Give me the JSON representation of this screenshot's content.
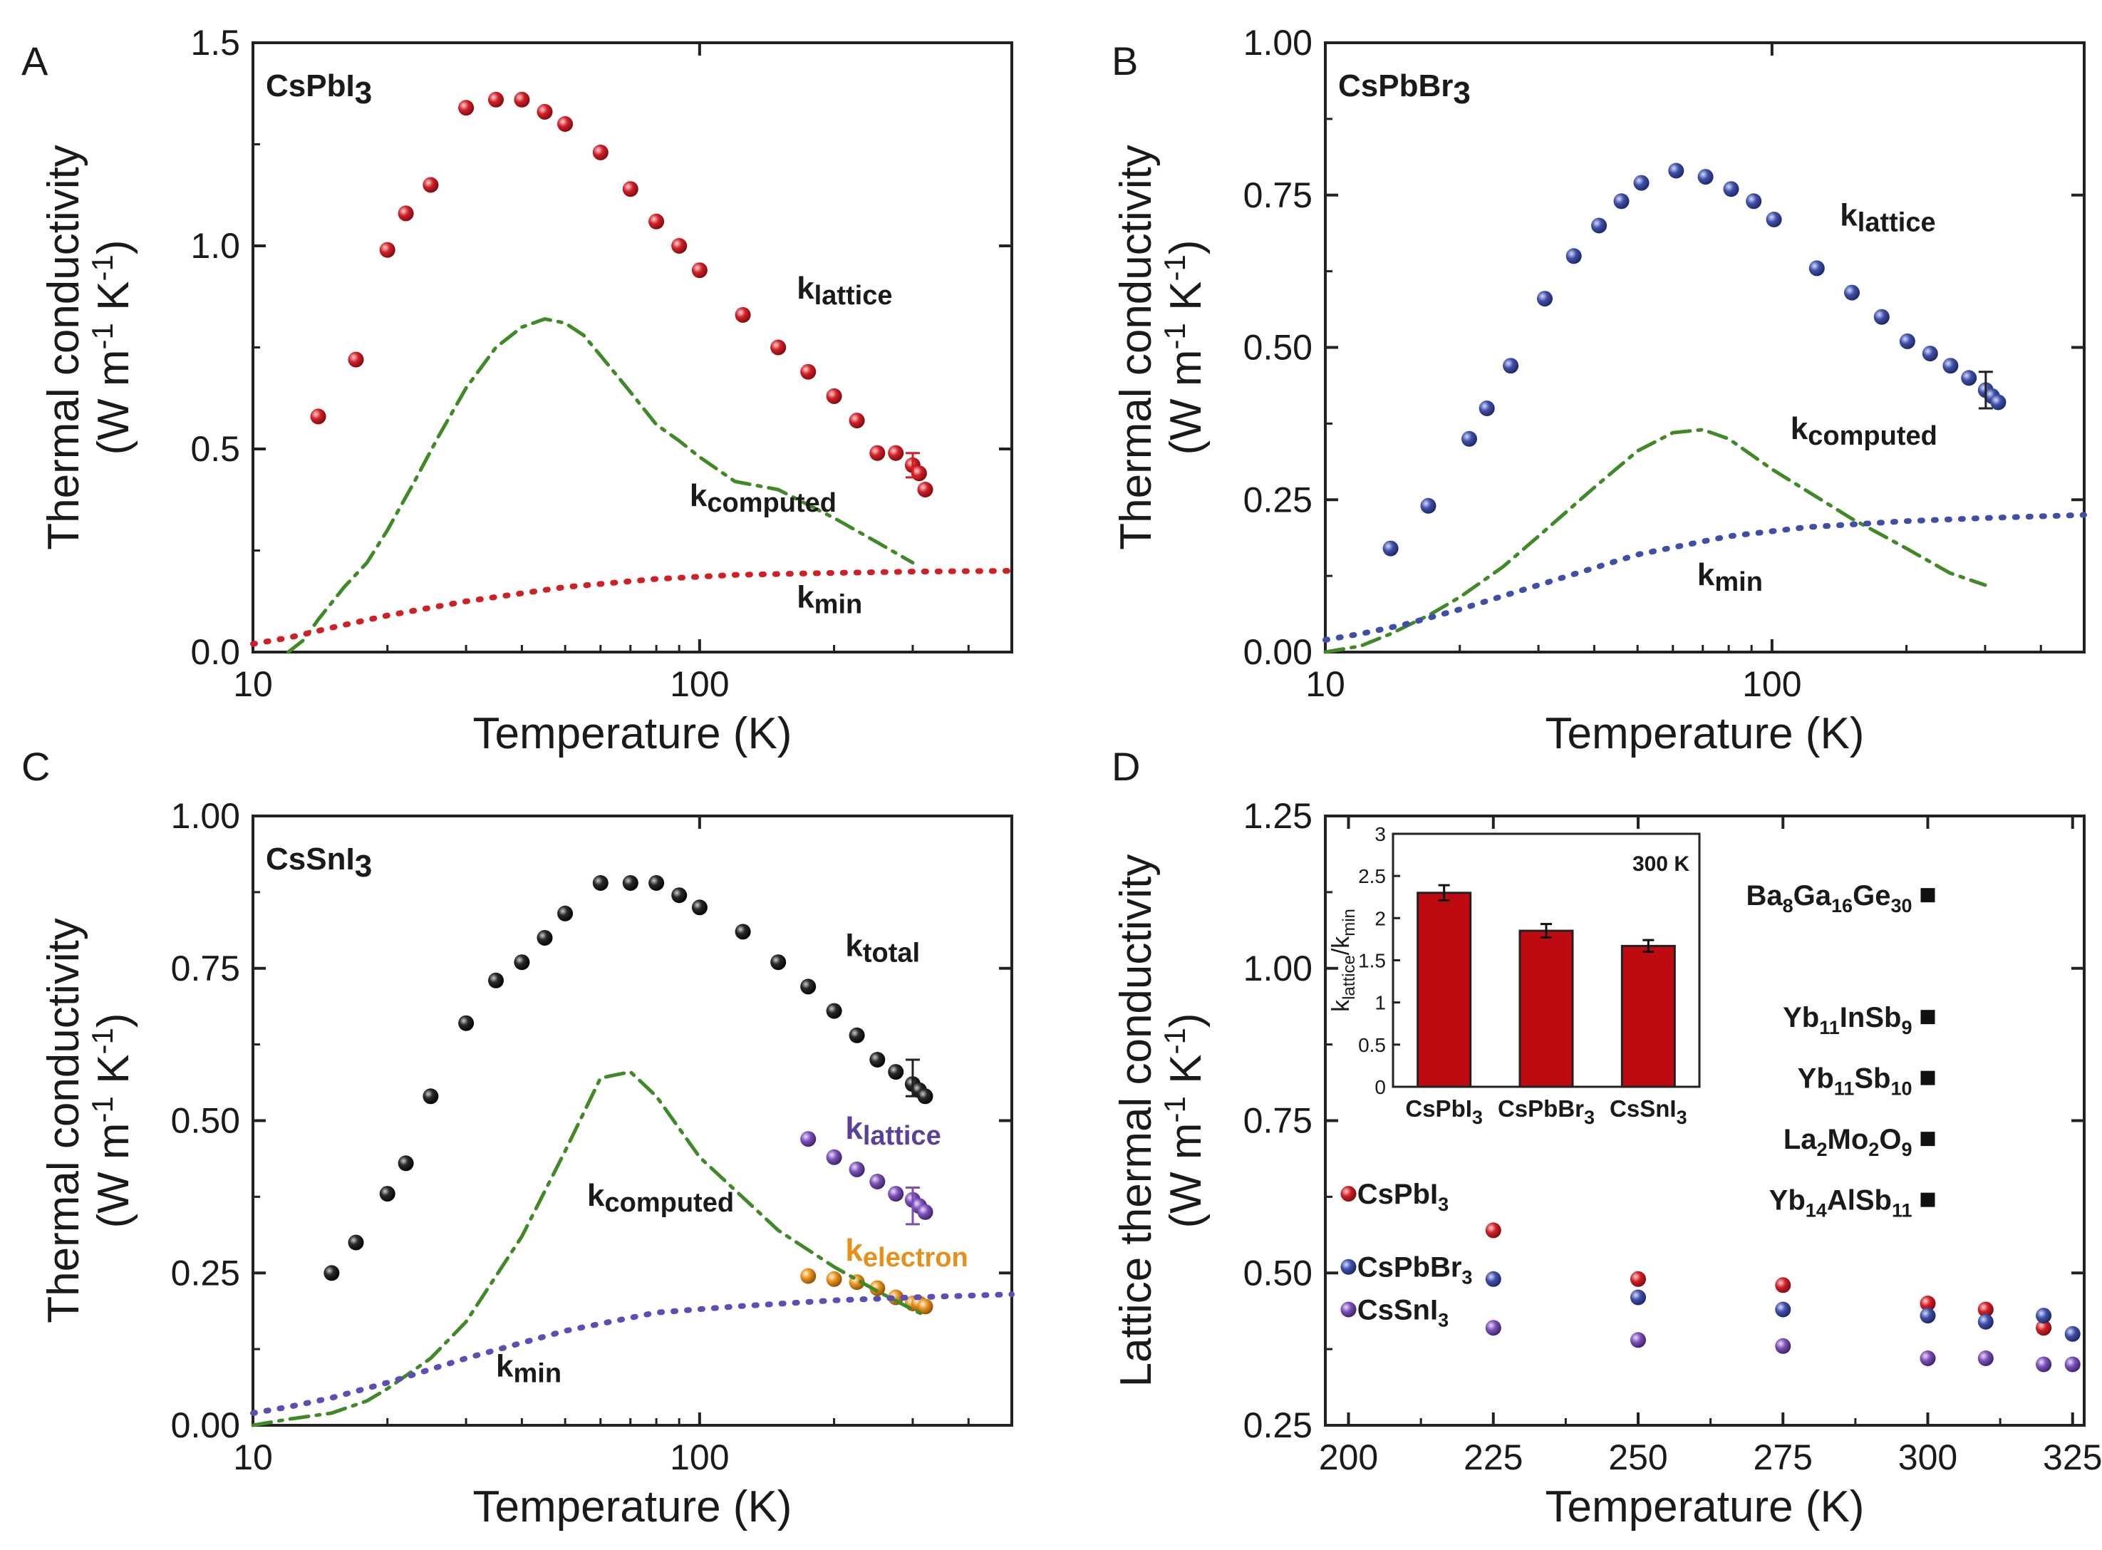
{
  "chart_data": [
    {
      "panel": "A",
      "type": "scatter",
      "title": "CsPbI3",
      "xlabel": "Temperature (K)",
      "ylabel_line1": "Thermal conductivity",
      "ylabel_line2": "(W m-1 K-1)",
      "xscale": "log",
      "xlim": [
        10,
        500
      ],
      "ylim": [
        0,
        1.5
      ],
      "xticks": [
        {
          "value": 10,
          "label": "10"
        },
        {
          "value": 100,
          "label": "100"
        }
      ],
      "yticks": [
        {
          "value": 0,
          "label": "0.0"
        },
        {
          "value": 0.5,
          "label": "0.5"
        },
        {
          "value": 1.0,
          "label": "1.0"
        },
        {
          "value": 1.5,
          "label": "1.5"
        }
      ],
      "series": [
        {
          "name": "klattice",
          "label_main": "k",
          "label_sub": "lattice",
          "color": "#d11f26",
          "marker": "sphere",
          "x": [
            14,
            17,
            20,
            22,
            25,
            30,
            35,
            40,
            45,
            50,
            60,
            70,
            80,
            90,
            100,
            125,
            150,
            175,
            200,
            225,
            250,
            275,
            300,
            310,
            320
          ],
          "y": [
            0.58,
            0.72,
            0.99,
            1.08,
            1.15,
            1.34,
            1.36,
            1.36,
            1.33,
            1.3,
            1.23,
            1.14,
            1.06,
            1.0,
            0.94,
            0.83,
            0.75,
            0.69,
            0.63,
            0.57,
            0.49,
            0.49,
            0.46,
            0.44,
            0.4
          ],
          "errorbar": {
            "x": 300,
            "y": 0.46,
            "err": 0.03
          },
          "label_at": {
            "x": 165,
            "y": 0.87
          }
        },
        {
          "name": "kcomputed",
          "label_main": "k",
          "label_sub": "computed",
          "color": "#3f8a26",
          "style": "dashdot",
          "x": [
            12,
            13,
            14,
            16,
            18,
            20,
            23,
            26,
            30,
            35,
            40,
            45,
            50,
            55,
            60,
            70,
            80,
            90,
            100,
            120,
            150,
            200,
            250,
            300
          ],
          "y": [
            0.0,
            0.03,
            0.08,
            0.16,
            0.22,
            0.3,
            0.42,
            0.53,
            0.65,
            0.75,
            0.8,
            0.82,
            0.81,
            0.78,
            0.73,
            0.64,
            0.56,
            0.52,
            0.48,
            0.42,
            0.4,
            0.33,
            0.27,
            0.22
          ],
          "label_at": {
            "x": 95,
            "y": 0.36
          }
        },
        {
          "name": "kmin",
          "label_main": "k",
          "label_sub": "min",
          "color": "#d11f26",
          "style": "dotted",
          "x": [
            10,
            12,
            15,
            20,
            30,
            50,
            80,
            120,
            200,
            300,
            500
          ],
          "y": [
            0.02,
            0.035,
            0.06,
            0.09,
            0.125,
            0.16,
            0.18,
            0.19,
            0.195,
            0.198,
            0.2
          ],
          "label_at": {
            "x": 165,
            "y": 0.11
          }
        }
      ]
    },
    {
      "panel": "B",
      "type": "scatter",
      "title": "CsPbBr3",
      "xlabel": "Temperature (K)",
      "ylabel_line1": "Thermal conductivity",
      "ylabel_line2": "(W m-1 K-1)",
      "xscale": "log",
      "xlim": [
        10,
        500
      ],
      "ylim": [
        0,
        1.0
      ],
      "xticks": [
        {
          "value": 10,
          "label": "10"
        },
        {
          "value": 100,
          "label": "100"
        }
      ],
      "yticks": [
        {
          "value": 0,
          "label": "0.00"
        },
        {
          "value": 0.25,
          "label": "0.25"
        },
        {
          "value": 0.5,
          "label": "0.50"
        },
        {
          "value": 0.75,
          "label": "0.75"
        },
        {
          "value": 1.0,
          "label": "1.00"
        }
      ],
      "series": [
        {
          "name": "klattice",
          "label_main": "k",
          "label_sub": "lattice",
          "color": "#3f4fa8",
          "marker": "sphere",
          "x": [
            14,
            17,
            21,
            23,
            26,
            31,
            36,
            41,
            46,
            51,
            61,
            71,
            81,
            91,
            101,
            126,
            151,
            176,
            201,
            226,
            251,
            276,
            301,
            311,
            321
          ],
          "y": [
            0.17,
            0.24,
            0.35,
            0.4,
            0.47,
            0.58,
            0.65,
            0.7,
            0.74,
            0.77,
            0.79,
            0.78,
            0.76,
            0.74,
            0.71,
            0.63,
            0.59,
            0.55,
            0.51,
            0.49,
            0.47,
            0.45,
            0.43,
            0.42,
            0.41
          ],
          "errorbar": {
            "x": 301,
            "y": 0.43,
            "err": 0.03
          },
          "label_at": {
            "x": 142,
            "y": 0.7
          }
        },
        {
          "name": "kcomputed",
          "label_main": "k",
          "label_sub": "computed",
          "color": "#3f8a26",
          "style": "dashdot",
          "x": [
            10,
            12,
            14,
            17,
            20,
            25,
            30,
            40,
            50,
            60,
            70,
            80,
            100,
            150,
            200,
            250,
            300
          ],
          "y": [
            0.0,
            0.01,
            0.03,
            0.06,
            0.09,
            0.14,
            0.19,
            0.27,
            0.33,
            0.36,
            0.365,
            0.35,
            0.3,
            0.22,
            0.17,
            0.13,
            0.11
          ],
          "label_at": {
            "x": 110,
            "y": 0.35
          }
        },
        {
          "name": "kmin",
          "label_main": "k",
          "label_sub": "min",
          "color": "#3f4fa8",
          "style": "dotted",
          "x": [
            10,
            12,
            15,
            20,
            30,
            50,
            80,
            120,
            200,
            300,
            500
          ],
          "y": [
            0.02,
            0.03,
            0.045,
            0.07,
            0.11,
            0.16,
            0.19,
            0.205,
            0.215,
            0.22,
            0.225
          ],
          "label_at": {
            "x": 68,
            "y": 0.11
          }
        }
      ]
    },
    {
      "panel": "C",
      "type": "scatter",
      "title": "CsSnI3",
      "xlabel": "Temperature (K)",
      "ylabel_line1": "Thermal conductivity",
      "ylabel_line2": "(W m-1 K-1)",
      "xscale": "log",
      "xlim": [
        10,
        500
      ],
      "ylim": [
        0,
        1.0
      ],
      "xticks": [
        {
          "value": 10,
          "label": "10"
        },
        {
          "value": 100,
          "label": "100"
        }
      ],
      "yticks": [
        {
          "value": 0,
          "label": "0.00"
        },
        {
          "value": 0.25,
          "label": "0.25"
        },
        {
          "value": 0.5,
          "label": "0.50"
        },
        {
          "value": 0.75,
          "label": "0.75"
        },
        {
          "value": 1.0,
          "label": "1.00"
        }
      ],
      "series": [
        {
          "name": "ktotal",
          "label_main": "k",
          "label_sub": "total",
          "color": "#1a1a1a",
          "marker": "sphere",
          "x": [
            15,
            17,
            20,
            22,
            25,
            30,
            35,
            40,
            45,
            50,
            60,
            70,
            80,
            90,
            100,
            125,
            150,
            175,
            200,
            225,
            250,
            275,
            300,
            310,
            320
          ],
          "y": [
            0.25,
            0.3,
            0.38,
            0.43,
            0.54,
            0.66,
            0.73,
            0.76,
            0.8,
            0.84,
            0.89,
            0.89,
            0.89,
            0.87,
            0.85,
            0.81,
            0.76,
            0.72,
            0.68,
            0.64,
            0.6,
            0.58,
            0.56,
            0.55,
            0.54
          ],
          "errorbar": {
            "x": 300,
            "y": 0.57,
            "err": 0.03
          },
          "label_at": {
            "x": 212,
            "y": 0.77
          }
        },
        {
          "name": "klattice",
          "label_main": "k",
          "label_sub": "lattice",
          "color": "#7b4fb5",
          "marker": "sphere",
          "x": [
            175,
            200,
            225,
            250,
            275,
            300,
            310,
            320
          ],
          "y": [
            0.47,
            0.44,
            0.42,
            0.4,
            0.38,
            0.37,
            0.36,
            0.35
          ],
          "errorbar": {
            "x": 300,
            "y": 0.36,
            "err": 0.03
          },
          "label_at": {
            "x": 212,
            "y": 0.47
          }
        },
        {
          "name": "kelectron",
          "label_main": "k",
          "label_sub": "electron",
          "color": "#e6901c",
          "marker": "sphere",
          "x": [
            175,
            200,
            225,
            250,
            275,
            300,
            310,
            320
          ],
          "y": [
            0.245,
            0.24,
            0.235,
            0.225,
            0.21,
            0.2,
            0.2,
            0.195
          ],
          "label_at": {
            "x": 212,
            "y": 0.27
          }
        },
        {
          "name": "kcomputed",
          "label_main": "k",
          "label_sub": "computed",
          "color": "#3f8a26",
          "style": "dashdot",
          "x": [
            10,
            12,
            15,
            18,
            20,
            25,
            30,
            40,
            50,
            60,
            70,
            80,
            100,
            150,
            200,
            250,
            300,
            320
          ],
          "y": [
            0.0,
            0.01,
            0.02,
            0.04,
            0.06,
            0.11,
            0.17,
            0.31,
            0.45,
            0.57,
            0.58,
            0.54,
            0.44,
            0.32,
            0.26,
            0.22,
            0.19,
            0.18
          ],
          "label_at": {
            "x": 56,
            "y": 0.36
          }
        },
        {
          "name": "kmin",
          "label_main": "k",
          "label_sub": "min",
          "color": "#5b4fb5",
          "style": "dotted",
          "x": [
            10,
            12,
            15,
            20,
            30,
            50,
            80,
            120,
            200,
            300,
            500
          ],
          "y": [
            0.02,
            0.03,
            0.045,
            0.07,
            0.11,
            0.155,
            0.185,
            0.195,
            0.205,
            0.21,
            0.215
          ],
          "label_at": {
            "x": 35,
            "y": 0.08
          }
        }
      ]
    },
    {
      "panel": "D",
      "type": "scatter",
      "xlabel": "Temperature (K)",
      "ylabel_line1": "Lattice thermal conductivity",
      "ylabel_line2": "(W m-1 K-1)",
      "xscale": "linear",
      "xlim": [
        196,
        327
      ],
      "ylim": [
        0.25,
        1.25
      ],
      "xticks": [
        {
          "value": 200,
          "label": "200"
        },
        {
          "value": 225,
          "label": "225"
        },
        {
          "value": 250,
          "label": "250"
        },
        {
          "value": 275,
          "label": "275"
        },
        {
          "value": 300,
          "label": "300"
        },
        {
          "value": 325,
          "label": "325"
        }
      ],
      "yticks": [
        {
          "value": 0.25,
          "label": "0.25"
        },
        {
          "value": 0.5,
          "label": "0.50"
        },
        {
          "value": 0.75,
          "label": "0.75"
        },
        {
          "value": 1.0,
          "label": "1.00"
        },
        {
          "value": 1.25,
          "label": "1.25"
        }
      ],
      "series": [
        {
          "name": "CsPbI3",
          "color": "#d11f26",
          "marker": "sphere",
          "x": [
            200,
            225,
            250,
            275,
            300,
            310,
            320
          ],
          "y": [
            0.63,
            0.57,
            0.49,
            0.48,
            0.45,
            0.44,
            0.41
          ]
        },
        {
          "name": "CsPbBr3",
          "color": "#3f4fa8",
          "marker": "sphere",
          "x": [
            200,
            225,
            250,
            275,
            300,
            310,
            320,
            325
          ],
          "y": [
            0.51,
            0.49,
            0.46,
            0.44,
            0.43,
            0.42,
            0.43,
            0.4
          ]
        },
        {
          "name": "CsSnI3",
          "color": "#7b4fb5",
          "marker": "sphere",
          "x": [
            200,
            225,
            250,
            275,
            300,
            310,
            320,
            325
          ],
          "y": [
            0.44,
            0.41,
            0.39,
            0.38,
            0.36,
            0.36,
            0.35,
            0.35
          ]
        }
      ],
      "legend": [
        {
          "name": "CsPbI3",
          "color": "#d11f26",
          "y": 0.63
        },
        {
          "name": "CsPbBr3",
          "color": "#3f4fa8",
          "y": 0.51
        },
        {
          "name": "CsSnI3",
          "color": "#7b4fb5",
          "y": 0.44
        }
      ],
      "reference_compounds": [
        {
          "name": "Ba8Ga16Ge30",
          "x": 300,
          "y": 1.12,
          "parts": [
            [
              "Ba",
              "8"
            ],
            [
              "Ga",
              "16"
            ],
            [
              "Ge",
              "30"
            ]
          ]
        },
        {
          "name": "Yb11InSb9",
          "x": 300,
          "y": 0.92,
          "parts": [
            [
              "Yb",
              "11"
            ],
            [
              "In",
              ""
            ],
            [
              "Sb",
              "9"
            ]
          ]
        },
        {
          "name": "Yb11Sb10",
          "x": 300,
          "y": 0.82,
          "parts": [
            [
              "Yb",
              "11"
            ],
            [
              "Sb",
              "10"
            ]
          ]
        },
        {
          "name": "La2Mo2O9",
          "x": 300,
          "y": 0.72,
          "parts": [
            [
              "La",
              "2"
            ],
            [
              "Mo",
              "2"
            ],
            [
              "O",
              "9"
            ]
          ]
        },
        {
          "name": "Yb14AlSb11",
          "x": 300,
          "y": 0.62,
          "parts": [
            [
              "Yb",
              "14"
            ],
            [
              "AlSb",
              "11"
            ]
          ]
        }
      ],
      "inset": {
        "type": "bar",
        "title": "300 K",
        "ylabel": "klattice/kmin",
        "ylim": [
          0,
          3
        ],
        "yticks": [
          "0",
          "0.5",
          "1",
          "1.5",
          "2",
          "2.5",
          "3"
        ],
        "categories": [
          "CsPbI3",
          "CsPbBr3",
          "CsSnI3"
        ],
        "values": [
          2.3,
          1.85,
          1.67
        ],
        "errors": [
          0.09,
          0.08,
          0.07
        ],
        "bar_color": "#c00a12"
      }
    }
  ]
}
